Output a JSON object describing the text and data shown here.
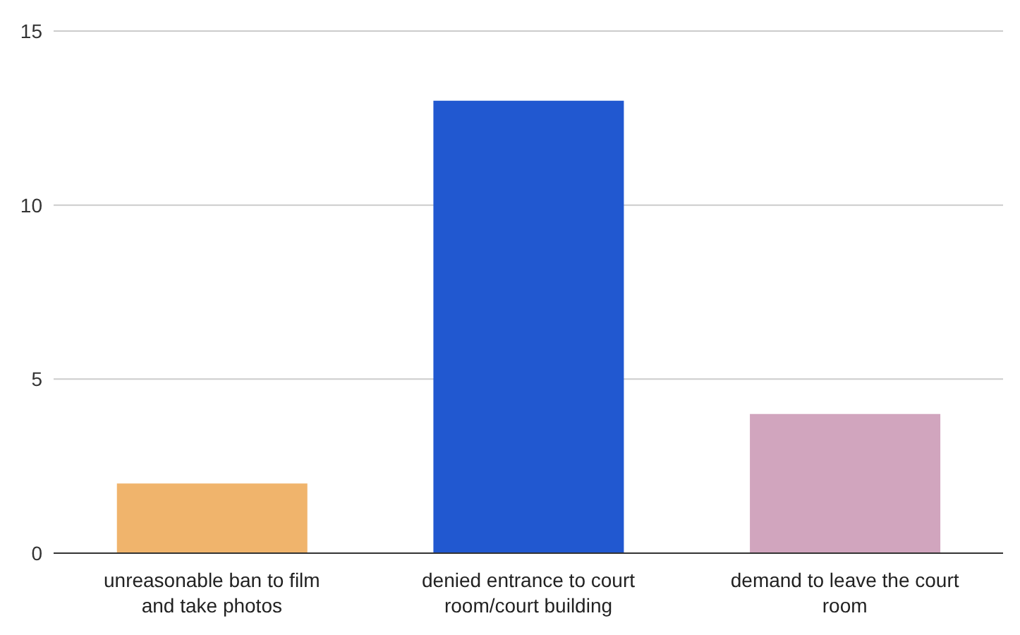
{
  "chart_data": {
    "type": "bar",
    "categories": [
      "unreasonable ban to film and take photos",
      "denied entrance to court room/court building",
      "demand to leave the court room"
    ],
    "values": [
      2,
      13,
      4
    ],
    "colors": [
      "#f0b46c",
      "#2158d0",
      "#d1a5be"
    ],
    "ylim": [
      0,
      15
    ],
    "yticks": [
      0,
      5,
      10,
      15
    ],
    "grid": "y"
  }
}
